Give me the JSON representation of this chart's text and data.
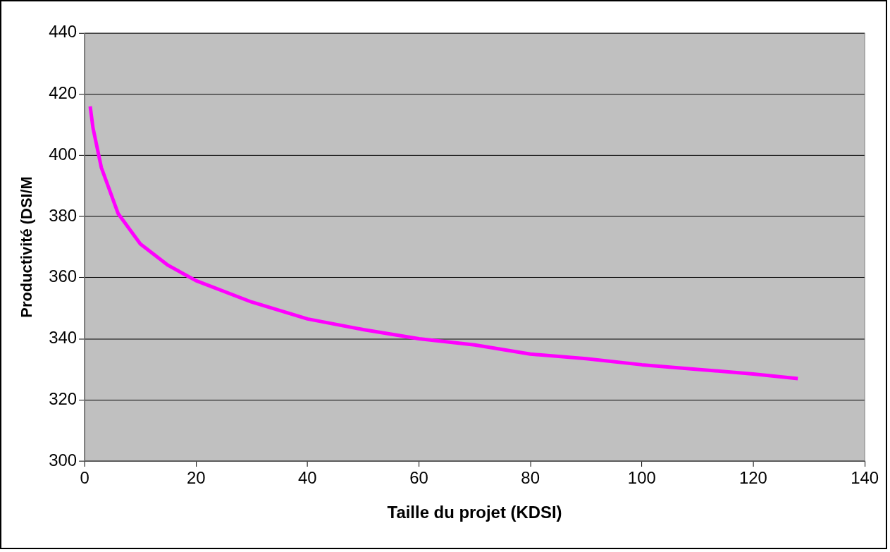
{
  "chart_data": {
    "type": "line",
    "xlabel": "Taille du projet (KDSI)",
    "ylabel": "Productivité (DSI/M",
    "x": [
      1,
      1.5,
      3,
      6,
      10,
      15,
      20,
      30,
      40,
      50,
      60,
      70,
      80,
      90,
      100,
      110,
      120,
      128
    ],
    "series": [
      {
        "color": "#ff00ff",
        "values": [
          416,
          409,
          396,
          381,
          371,
          364,
          359,
          352,
          346.5,
          343,
          340,
          338,
          335,
          333.5,
          331.5,
          330,
          328.5,
          327
        ]
      }
    ],
    "xlim": [
      0,
      140
    ],
    "xticks": [
      0,
      20,
      40,
      60,
      80,
      100,
      120,
      140
    ],
    "ylim": [
      300,
      440
    ],
    "yticks": [
      300,
      320,
      340,
      360,
      380,
      400,
      420,
      440
    ],
    "grid": "y",
    "legend": false,
    "marker": "none",
    "line_style": "solid"
  }
}
